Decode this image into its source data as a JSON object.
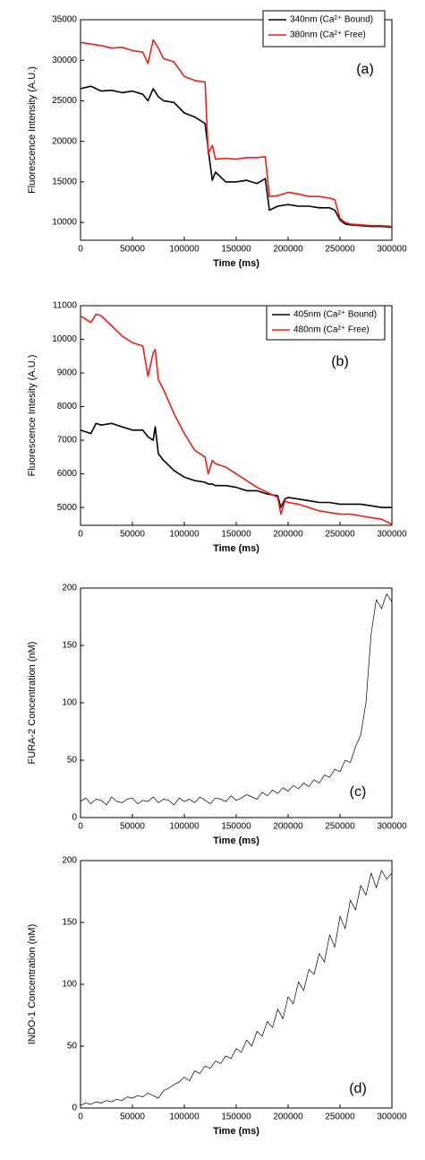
{
  "chart_data": [
    {
      "type": "line",
      "x_label": "Time (ms)",
      "y_label": "Fluorescence Intensity (A.U.)",
      "annotation": "(a)",
      "legend": "upper right",
      "xlim": [
        0,
        300000
      ],
      "xticks": [
        0,
        50000,
        100000,
        150000,
        200000,
        250000,
        300000
      ],
      "ylim": [
        7800,
        35000
      ],
      "yticks": [
        10000,
        15000,
        20000,
        25000,
        30000,
        35000
      ],
      "x": [
        0,
        10000,
        20000,
        30000,
        40000,
        50000,
        60000,
        65000,
        70000,
        75000,
        80000,
        90000,
        100000,
        110000,
        120000,
        123000,
        127000,
        130000,
        140000,
        150000,
        160000,
        170000,
        178000,
        182000,
        190000,
        200000,
        210000,
        220000,
        230000,
        240000,
        245000,
        250000,
        255000,
        260000,
        270000,
        280000,
        290000,
        300000
      ],
      "series": [
        {
          "name": "340nm (Ca²⁺ Bound)",
          "color": "#000000",
          "values": [
            26500,
            26800,
            26200,
            26300,
            26000,
            26200,
            25800,
            25000,
            26500,
            25500,
            25000,
            24800,
            23500,
            23000,
            22200,
            19000,
            15200,
            16200,
            15000,
            15000,
            15200,
            14800,
            15400,
            11500,
            12000,
            12200,
            12000,
            12000,
            11800,
            11800,
            11500,
            10300,
            9800,
            9700,
            9600,
            9500,
            9500,
            9400
          ]
        },
        {
          "name": "380nm (Ca²⁺ Free)",
          "color": "#e8201a",
          "values": [
            32200,
            32000,
            31800,
            31500,
            31600,
            31200,
            31000,
            29600,
            32500,
            31500,
            30200,
            29800,
            28000,
            27500,
            27300,
            18500,
            19500,
            17800,
            17900,
            17800,
            18000,
            18000,
            18100,
            13200,
            13300,
            13700,
            13500,
            13200,
            13200,
            13000,
            12800,
            10500,
            10000,
            9800,
            9700,
            9600,
            9600,
            9500
          ]
        }
      ]
    },
    {
      "type": "line",
      "x_label": "Time (ms)",
      "y_label": "Fluorescence Intesity (A.U.)",
      "annotation": "(b)",
      "legend": "upper right",
      "xlim": [
        0,
        300000
      ],
      "xticks": [
        0,
        50000,
        100000,
        150000,
        200000,
        250000,
        300000
      ],
      "ylim": [
        4470,
        11000
      ],
      "yticks": [
        5000,
        6000,
        7000,
        8000,
        9000,
        10000,
        11000
      ],
      "x": [
        0,
        10000,
        15000,
        20000,
        30000,
        40000,
        50000,
        60000,
        65000,
        70000,
        72000,
        75000,
        80000,
        90000,
        100000,
        110000,
        120000,
        123000,
        127000,
        130000,
        140000,
        150000,
        160000,
        170000,
        180000,
        190000,
        193000,
        197000,
        200000,
        210000,
        220000,
        230000,
        240000,
        250000,
        260000,
        270000,
        280000,
        290000,
        300000
      ],
      "series": [
        {
          "name": "405nm (Ca²⁺ Bound)",
          "color": "#000000",
          "values": [
            7300,
            7200,
            7500,
            7450,
            7500,
            7400,
            7300,
            7300,
            7100,
            7000,
            7400,
            6600,
            6400,
            6100,
            5900,
            5800,
            5750,
            5700,
            5700,
            5650,
            5650,
            5600,
            5500,
            5500,
            5400,
            5350,
            5000,
            5250,
            5300,
            5250,
            5200,
            5150,
            5150,
            5100,
            5100,
            5100,
            5050,
            5000,
            5000
          ]
        },
        {
          "name": "480nm (Ca²⁺ Free)",
          "color": "#e8201a",
          "values": [
            10700,
            10500,
            10750,
            10700,
            10400,
            10100,
            9900,
            9800,
            8900,
            9600,
            9700,
            8800,
            8500,
            7800,
            7200,
            6700,
            6500,
            6000,
            6400,
            6300,
            6200,
            6000,
            5800,
            5600,
            5450,
            5300,
            4800,
            5200,
            5150,
            5100,
            5000,
            4900,
            4850,
            4800,
            4800,
            4750,
            4700,
            4650,
            4500
          ]
        }
      ]
    },
    {
      "type": "line",
      "x_label": "Time (ms)",
      "y_label": "FURA-2 Concentration (nM)",
      "annotation": "(c)",
      "xlim": [
        0,
        300000
      ],
      "xticks": [
        0,
        50000,
        100000,
        150000,
        200000,
        250000,
        300000
      ],
      "ylim": [
        0,
        200
      ],
      "yticks": [
        0,
        50,
        100,
        150,
        200
      ],
      "x": [
        0,
        5000,
        10000,
        15000,
        20000,
        25000,
        30000,
        35000,
        40000,
        45000,
        50000,
        55000,
        60000,
        65000,
        70000,
        75000,
        80000,
        85000,
        90000,
        95000,
        100000,
        105000,
        110000,
        115000,
        120000,
        125000,
        130000,
        135000,
        140000,
        145000,
        150000,
        155000,
        160000,
        165000,
        170000,
        175000,
        180000,
        185000,
        190000,
        195000,
        200000,
        205000,
        210000,
        215000,
        220000,
        225000,
        230000,
        235000,
        240000,
        245000,
        250000,
        255000,
        260000,
        265000,
        270000,
        275000,
        280000,
        285000,
        290000,
        295000,
        300000
      ],
      "series": [
        {
          "color": "#000000",
          "values": [
            14,
            17,
            12,
            16,
            15,
            11,
            18,
            14,
            13,
            16,
            17,
            12,
            15,
            14,
            18,
            13,
            16,
            15,
            11,
            17,
            14,
            16,
            13,
            18,
            15,
            12,
            17,
            16,
            14,
            19,
            15,
            17,
            20,
            18,
            16,
            22,
            19,
            24,
            21,
            26,
            23,
            28,
            25,
            30,
            27,
            33,
            30,
            37,
            35,
            42,
            40,
            50,
            48,
            62,
            72,
            100,
            160,
            190,
            182,
            195,
            188
          ]
        }
      ]
    },
    {
      "type": "line",
      "x_label": "Time (ms)",
      "y_label": "INDO-1 Concentration (nM)",
      "annotation": "(d)",
      "xlim": [
        0,
        300000
      ],
      "xticks": [
        0,
        50000,
        100000,
        150000,
        200000,
        250000,
        300000
      ],
      "ylim": [
        0,
        200
      ],
      "yticks": [
        0,
        50,
        100,
        150,
        200
      ],
      "x": [
        0,
        5000,
        10000,
        15000,
        20000,
        25000,
        30000,
        35000,
        40000,
        45000,
        50000,
        55000,
        60000,
        65000,
        70000,
        75000,
        80000,
        85000,
        90000,
        95000,
        100000,
        105000,
        110000,
        115000,
        120000,
        125000,
        130000,
        135000,
        140000,
        145000,
        150000,
        155000,
        160000,
        165000,
        170000,
        175000,
        180000,
        185000,
        190000,
        195000,
        200000,
        205000,
        210000,
        215000,
        220000,
        225000,
        230000,
        235000,
        240000,
        245000,
        250000,
        255000,
        260000,
        265000,
        270000,
        275000,
        280000,
        285000,
        290000,
        295000,
        300000
      ],
      "series": [
        {
          "color": "#000000",
          "values": [
            2,
            4,
            3,
            5,
            4,
            6,
            5,
            7,
            6,
            9,
            8,
            10,
            9,
            12,
            10,
            8,
            14,
            16,
            19,
            21,
            25,
            22,
            30,
            28,
            34,
            32,
            38,
            36,
            42,
            40,
            48,
            45,
            55,
            50,
            62,
            58,
            70,
            65,
            80,
            72,
            90,
            84,
            102,
            95,
            112,
            108,
            125,
            118,
            140,
            130,
            155,
            145,
            168,
            160,
            180,
            172,
            190,
            178,
            192,
            185,
            190
          ]
        }
      ]
    }
  ]
}
